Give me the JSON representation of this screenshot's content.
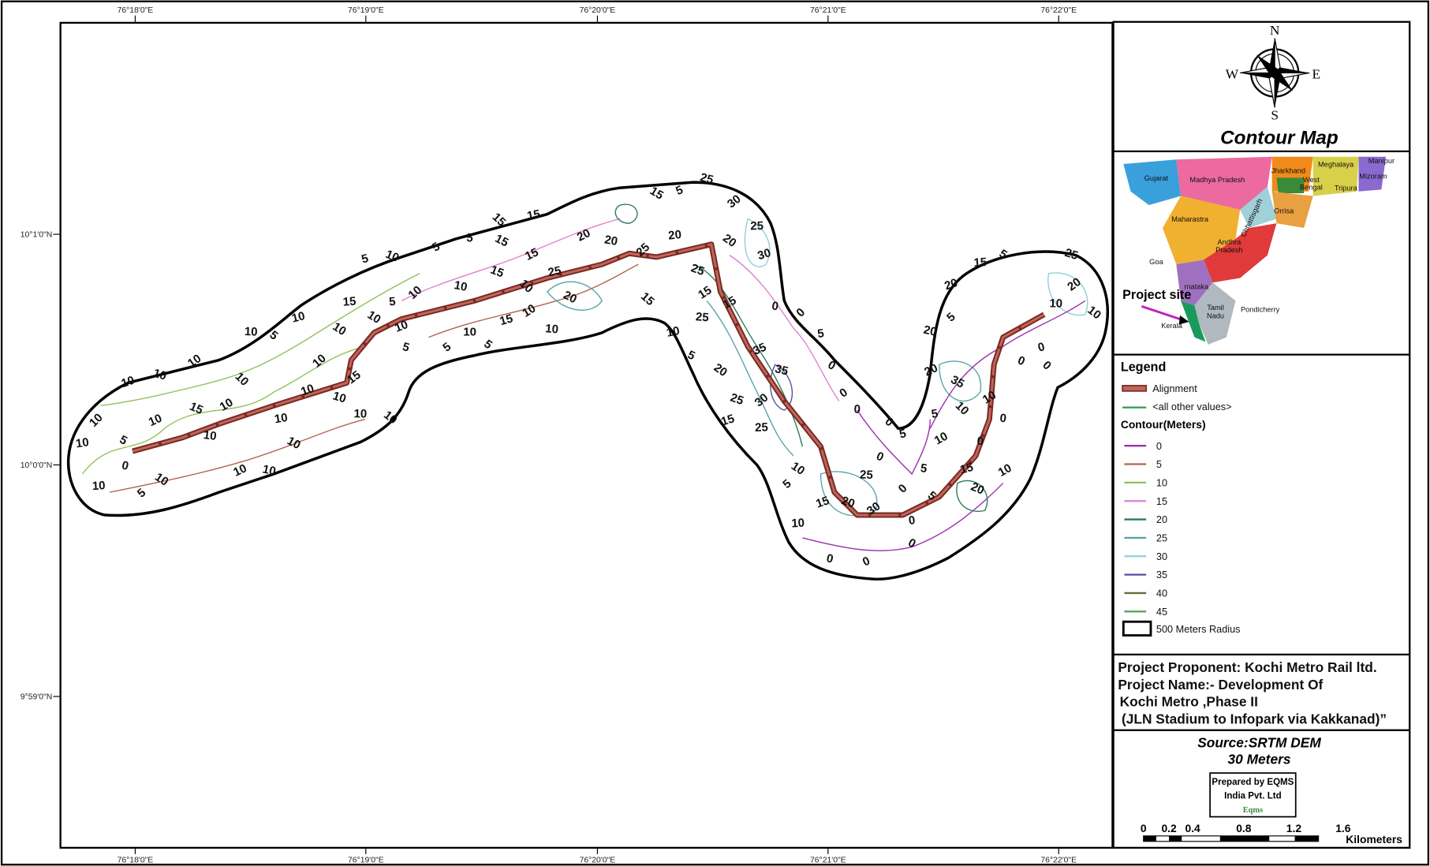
{
  "map": {
    "top_ticks": [
      "76°18'0\"E",
      "76°19'0\"E",
      "76°20'0\"E",
      "76°21'0\"E",
      "76°22'0\"E"
    ],
    "bottom_ticks": [
      "76°18'0\"E",
      "76°19'0\"E",
      "76°20'0\"E",
      "76°21'0\"E",
      "76°22'0\"E"
    ],
    "left_ticks": [
      "10°1'0\"N",
      "10°0'0\"N",
      "9°59'0\"N"
    ],
    "contour_labels": [
      "10",
      "10",
      "5",
      "10",
      "0",
      "5",
      "10",
      "10",
      "10",
      "10",
      "10",
      "10",
      "5",
      "10",
      "15",
      "10",
      "10",
      "10",
      "10",
      "10",
      "10",
      "10",
      "10",
      "15",
      "10",
      "10",
      "10",
      "15",
      "10",
      "10",
      "5",
      "10",
      "5",
      "5",
      "15",
      "15",
      "15",
      "15",
      "10",
      "10",
      "5",
      "10",
      "10",
      "5",
      "5",
      "10",
      "5",
      "15",
      "15",
      "10",
      "10",
      "10",
      "25",
      "20",
      "20",
      "20",
      "25",
      "20",
      "15",
      "5",
      "25",
      "30",
      "25",
      "20",
      "30",
      "25",
      "15",
      "25",
      "15",
      "10",
      "5",
      "15",
      "0",
      "0",
      "5",
      "0",
      "35",
      "35",
      "30",
      "25",
      "20",
      "15",
      "25",
      "0",
      "0",
      "0",
      "5",
      "0",
      "10",
      "5",
      "0",
      "0",
      "0",
      "0",
      "0",
      "5",
      "10",
      "10",
      "15",
      "20",
      "30",
      "25",
      "5",
      "15",
      "20",
      "10",
      "0",
      "10",
      "5",
      "35",
      "20",
      "20",
      "5",
      "15",
      "5",
      "20",
      "25",
      "20",
      "10",
      "10",
      "0",
      "0",
      "10",
      "0",
      "0"
    ]
  },
  "compass": {
    "n": "N",
    "s": "S",
    "e": "E",
    "w": "W"
  },
  "title": "Contour Map",
  "inset": {
    "states": [
      "Gujarat",
      "Madhya Pradesh",
      "Jharkhand",
      "Meghalaya",
      "Manipur",
      "Mizoram",
      "West",
      "Bengal",
      "Tripura",
      "Chhattisgarh",
      "Orrisa",
      "Maharastra",
      "Andhra",
      "Pradesh",
      "Goa",
      "rnataka",
      "Tamil",
      "Nadu",
      "Pondicherry",
      "Kerala"
    ],
    "project_site": "Project site"
  },
  "legend": {
    "title": "Legend",
    "alignment": "Alignment",
    "other": "<all other values>",
    "contour_title": "Contour(Meters)",
    "contours": [
      {
        "label": "0",
        "color": "#9b2fae"
      },
      {
        "label": "5",
        "color": "#b0654d"
      },
      {
        "label": "10",
        "color": "#8fc25a"
      },
      {
        "label": "15",
        "color": "#e07fd0"
      },
      {
        "label": "20",
        "color": "#2e7a5c"
      },
      {
        "label": "25",
        "color": "#5aa3a8"
      },
      {
        "label": "30",
        "color": "#8ed0d8"
      },
      {
        "label": "35",
        "color": "#5a4ea0"
      },
      {
        "label": "40",
        "color": "#6b6b3a"
      },
      {
        "label": "45",
        "color": "#5aa35a"
      }
    ],
    "buffer": "500 Meters Radius"
  },
  "project": {
    "lines": [
      "Project Proponent: Kochi Metro Rail ltd.",
      "Project Name:- Development Of",
      "Kochi Metro ,Phase II",
      "(JLN Stadium to Infopark via Kakkanad)”"
    ]
  },
  "source": {
    "lines": [
      "Source:SRTM DEM",
      "30 Meters"
    ]
  },
  "prepared": {
    "lines": [
      "Prepared by EQMS",
      "India Pvt. Ltd",
      "Eqms"
    ]
  },
  "scale": {
    "labels": [
      "0",
      "0.2",
      "0.4",
      "0.8",
      "1.2",
      "1.6"
    ],
    "unit": "Kilometers"
  }
}
